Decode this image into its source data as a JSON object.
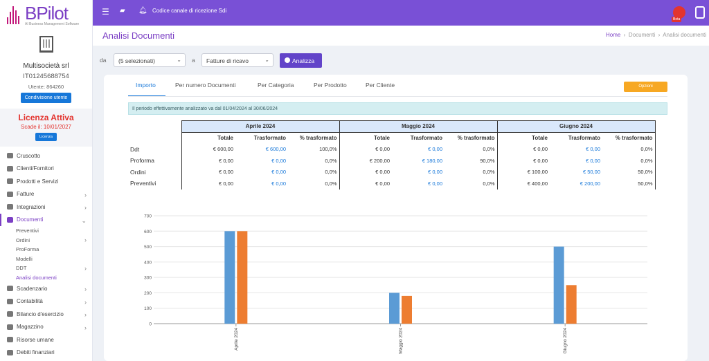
{
  "app": {
    "logo_name": "BPilot",
    "logo_tagline": "AI Business Management Software",
    "topbar_title": "Codice canale di ricezione Sdi",
    "beta_label": "Beta"
  },
  "company": {
    "name": "Multisocietà srl",
    "vat": "IT01245688754",
    "user_label": "Utente: 864260",
    "share_button": "Condivisione utente",
    "license_title": "Licenza Attiva",
    "license_expiry": "Scade il: 10/01/2027",
    "license_button": "Licenza"
  },
  "nav": {
    "items_top": [
      {
        "label": "Cruscotto",
        "icon": "gauge-icon",
        "chevron": false
      },
      {
        "label": "Clienti/Fornitori",
        "icon": "user-icon",
        "chevron": false
      },
      {
        "label": "Prodotti e Servizi",
        "icon": "box-icon",
        "chevron": false
      },
      {
        "label": "Fatture",
        "icon": "invoice-icon",
        "chevron": true
      },
      {
        "label": "Integrazioni",
        "icon": "plug-icon",
        "chevron": true
      },
      {
        "label": "Documenti",
        "icon": "document-icon",
        "chevron": true,
        "expanded": true
      }
    ],
    "documenti_sub": [
      {
        "label": "Preventivi",
        "chevron": false
      },
      {
        "label": "Ordini",
        "chevron": true
      },
      {
        "label": "ProForma",
        "chevron": false
      },
      {
        "label": "Modelli",
        "chevron": false
      },
      {
        "label": "DDT",
        "chevron": true
      },
      {
        "label": "Analisi documenti",
        "chevron": false,
        "active": true
      }
    ],
    "items_bottom": [
      {
        "label": "Scadenzario",
        "icon": "calendar-icon",
        "chevron": true
      },
      {
        "label": "Contabilità",
        "icon": "ledger-icon",
        "chevron": true
      },
      {
        "label": "Bilancio d'esercizio",
        "icon": "balance-icon",
        "chevron": true
      },
      {
        "label": "Magazzino",
        "icon": "warehouse-icon",
        "chevron": true
      },
      {
        "label": "Risorse umane",
        "icon": "people-icon",
        "chevron": false
      },
      {
        "label": "Debiti finanziari",
        "icon": "debt-icon",
        "chevron": false
      }
    ]
  },
  "header": {
    "title": "Analisi Documenti",
    "breadcrumb": [
      "Home",
      "Documenti",
      "Analisi documenti"
    ]
  },
  "filters": {
    "label_from": "da",
    "period_select": "(5 selezionati)",
    "label_a": "a",
    "type_select": "Fatture di ricavo",
    "analyze_button": "Analizza"
  },
  "tabs": [
    "Importo",
    "Per numero Documenti",
    "Per Categoria",
    "Per Prodotto",
    "Per Cliente"
  ],
  "options_button": "Opzioni",
  "info_text": "Il periodo effettivamente analizzato va dal 01/04/2024 al 30/06/2024",
  "table": {
    "months": [
      "Aprile 2024",
      "Maggio 2024",
      "Giugno 2024"
    ],
    "subheaders": [
      "Totale",
      "Trasformato",
      "% trasformato"
    ],
    "rows": [
      {
        "label": "Ddt",
        "values": [
          [
            "€ 600,00",
            "€ 600,00",
            "100,0%"
          ],
          [
            "€ 0,00",
            "€ 0,00",
            "0,0%"
          ],
          [
            "€ 0,00",
            "€ 0,00",
            "0,0%"
          ]
        ]
      },
      {
        "label": "Proforma",
        "values": [
          [
            "€ 0,00",
            "€ 0,00",
            "0,0%"
          ],
          [
            "€ 200,00",
            "€ 180,00",
            "90,0%"
          ],
          [
            "€ 0,00",
            "€ 0,00",
            "0,0%"
          ]
        ]
      },
      {
        "label": "Ordini",
        "values": [
          [
            "€ 0,00",
            "€ 0,00",
            "0,0%"
          ],
          [
            "€ 0,00",
            "€ 0,00",
            "0,0%"
          ],
          [
            "€ 100,00",
            "€ 50,00",
            "50,0%"
          ]
        ]
      },
      {
        "label": "Preventivi",
        "values": [
          [
            "€ 0,00",
            "€ 0,00",
            "0,0%"
          ],
          [
            "€ 0,00",
            "€ 0,00",
            "0,0%"
          ],
          [
            "€ 400,00",
            "€ 200,00",
            "50,0%"
          ]
        ]
      }
    ]
  },
  "chart_data": {
    "type": "bar",
    "categories": [
      "Aprile 2024",
      "Maggio 2024",
      "Giugno 2024"
    ],
    "series": [
      {
        "color": "#5b9bd5",
        "values": [
          600,
          200,
          500
        ]
      },
      {
        "color": "#ed7d31",
        "values": [
          600,
          180,
          250
        ]
      }
    ],
    "ylim": [
      0,
      700
    ],
    "yticks": [
      0,
      100,
      200,
      300,
      400,
      500,
      600,
      700
    ],
    "grid": true
  }
}
